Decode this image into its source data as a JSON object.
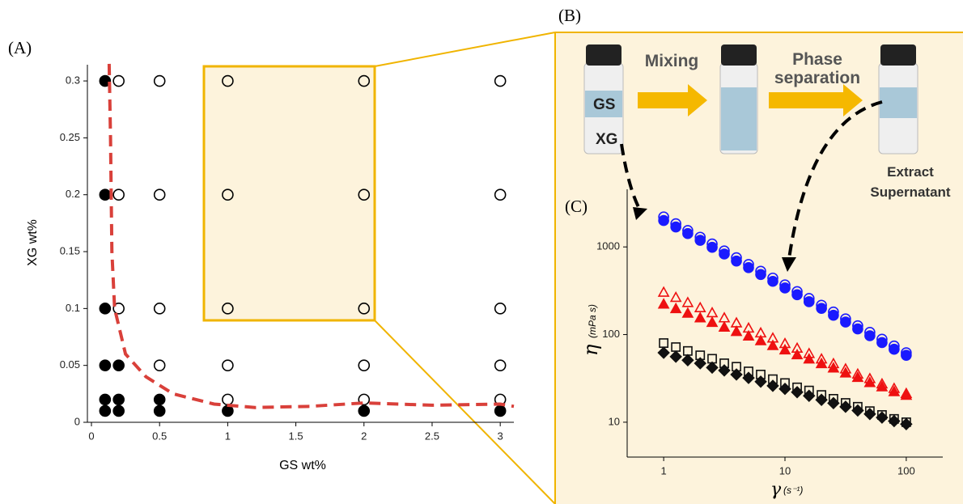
{
  "panels": {
    "a": "(A)",
    "b": "(B)",
    "c": "(C)"
  },
  "diagram": {
    "vial_top": "GS",
    "vial_bottom": "XG",
    "step_1": "Mixing",
    "step_2": [
      "Phase",
      "separation"
    ],
    "step_3": [
      "Extract",
      "Supernatant"
    ]
  },
  "chart_data": [
    {
      "type": "scatter",
      "xlabel": "GS wt%",
      "ylabel": "XG wt%",
      "xlim": [
        0,
        3.1
      ],
      "ylim": [
        0,
        0.31
      ],
      "xticks": [
        0,
        0.5,
        1,
        1.5,
        2,
        2.5,
        3
      ],
      "yticks": [
        0,
        0.05,
        0.1,
        0.15,
        0.2,
        0.25,
        0.3
      ],
      "log": false,
      "series": [
        {
          "marker": "circle",
          "filled": true,
          "color": "#000000",
          "x": [
            0.1,
            0.1,
            0.1,
            0.1,
            0.2,
            0.1,
            0.2,
            0.5,
            0.1,
            0.2,
            0.5,
            1,
            2,
            3
          ],
          "values": [
            0.3,
            0.2,
            0.1,
            0.05,
            0.05,
            0.02,
            0.02,
            0.02,
            0.01,
            0.01,
            0.01,
            0.01,
            0.01,
            0.01
          ]
        },
        {
          "marker": "circle",
          "filled": false,
          "color": "#000000",
          "x": [
            0.2,
            0.2,
            0.2,
            0.5,
            0.5,
            0.5,
            0.5,
            1,
            1,
            1,
            1,
            1,
            2,
            2,
            2,
            2,
            2,
            3,
            3,
            3,
            3,
            3
          ],
          "values": [
            0.3,
            0.2,
            0.1,
            0.3,
            0.2,
            0.1,
            0.05,
            0.3,
            0.2,
            0.1,
            0.05,
            0.02,
            0.3,
            0.2,
            0.1,
            0.05,
            0.02,
            0.3,
            0.2,
            0.1,
            0.05,
            0.02
          ]
        },
        {
          "marker": "line",
          "style": "dashed",
          "color": "#d9403a",
          "x": [
            0.13,
            0.14,
            0.15,
            0.17,
            0.25,
            0.4,
            0.6,
            0.9,
            1.2,
            1.6,
            2,
            2.5,
            3,
            3.1
          ],
          "values": [
            0.315,
            0.25,
            0.15,
            0.1,
            0.06,
            0.04,
            0.025,
            0.016,
            0.013,
            0.014,
            0.017,
            0.015,
            0.016,
            0.014
          ]
        }
      ]
    },
    {
      "type": "scatter",
      "xlabel": "γ",
      "xunit": "(s⁻¹)",
      "ylabel": "η",
      "yunit": "(mPa s)",
      "xlim": [
        0.5,
        200
      ],
      "ylim": [
        4,
        4000
      ],
      "xticks": [
        1,
        10,
        100
      ],
      "yticks": [
        10,
        100,
        1000
      ],
      "log": true,
      "x": [
        1,
        1.26,
        1.58,
        2,
        2.51,
        3.16,
        3.98,
        5.01,
        6.31,
        7.94,
        10,
        12.6,
        15.8,
        20,
        25.1,
        31.6,
        39.8,
        50.1,
        63.1,
        79.4,
        100
      ],
      "series": [
        {
          "marker": "circle",
          "filled": true,
          "color": "#1a1aff",
          "values": [
            2000,
            1690,
            1420,
            1190,
            990,
            830,
            690,
            580,
            485,
            405,
            340,
            285,
            237,
            199,
            166,
            139,
            116,
            97,
            81,
            68,
            58
          ]
        },
        {
          "marker": "circle",
          "filled": false,
          "color": "#1a1aff",
          "values": [
            2200,
            1840,
            1540,
            1290,
            1080,
            900,
            753,
            630,
            527,
            441,
            369,
            309,
            258,
            216,
            181,
            151,
            126,
            106,
            88.5,
            74,
            62
          ]
        },
        {
          "marker": "triangle",
          "filled": true,
          "color": "#ee1111",
          "values": [
            220,
            195,
            173,
            153,
            136,
            120,
            107,
            95,
            84,
            74,
            66,
            58,
            52,
            46,
            41,
            36,
            32,
            28,
            25,
            22,
            20
          ]
        },
        {
          "marker": "triangle",
          "filled": false,
          "color": "#ee1111",
          "values": [
            300,
            262,
            229,
            200,
            175,
            153,
            134,
            117,
            103,
            90,
            78,
            69,
            60,
            52,
            46,
            40,
            35,
            31,
            27,
            24,
            21
          ]
        },
        {
          "marker": "diamond",
          "filled": true,
          "color": "#111111",
          "values": [
            62,
            56,
            51,
            47,
            42,
            39,
            35,
            32,
            29,
            26,
            24,
            22,
            20,
            18,
            16.5,
            15,
            13.6,
            12.4,
            11.3,
            10.3,
            9.5
          ]
        },
        {
          "marker": "square",
          "filled": false,
          "color": "#111111",
          "values": [
            80,
            72,
            65,
            58,
            53,
            47,
            43,
            38,
            35,
            31,
            28,
            25,
            23,
            20.5,
            18.5,
            16.6,
            15,
            13.4,
            12.1,
            10.9,
            10
          ]
        }
      ]
    }
  ]
}
